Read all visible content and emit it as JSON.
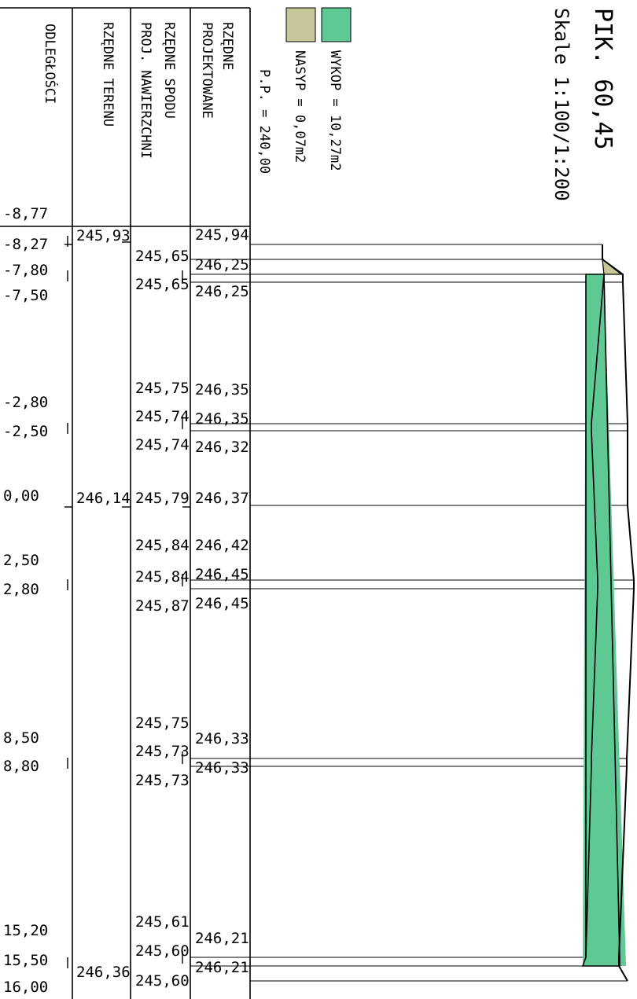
{
  "title": "PIK. 60,45",
  "scale": "Skale 1:100/1:200",
  "legend": {
    "wykop": "WYKOP = 10,27m2",
    "nasyp": "NASYP = 0,07m2",
    "pp": "P.P. = 240,00",
    "wykop_color": "#5fc994",
    "nasyp_color": "#c8c79a"
  },
  "columns": {
    "odleglosci": "ODLEGŁOŚCI",
    "rzedne_terenu": "RZĘDNE TERENU",
    "spodu_line1": "RZĘDNE SPODU",
    "spodu_line2": "PROJ. NAWIERZCHNI",
    "proj_line1": "RZĘDNE",
    "proj_line2": "PROJEKTOWANE"
  },
  "header_offset": "-8,77",
  "rows": {
    "distances": [
      "-8,27",
      "-7,80",
      "-7,50",
      "-2,80",
      "-2,50",
      "0,00",
      "2,50",
      "2,80",
      "8,50",
      "8,80",
      "15,20",
      "15,50",
      "16,00"
    ],
    "terrain": [
      "245,93",
      "246,14",
      "246,36"
    ],
    "subgrade": [
      "245,65",
      "245,65",
      "245,75",
      "245,74",
      "245,74",
      "245,79",
      "245,84",
      "245,84",
      "245,87",
      "245,75",
      "245,73",
      "245,73",
      "245,61",
      "245,60",
      "245,60"
    ],
    "design": [
      "245,94",
      "246,25",
      "246,25",
      "246,35",
      "246,35",
      "246,32",
      "246,37",
      "246,42",
      "246,45",
      "246,45",
      "246,33",
      "246,33",
      "246,21",
      "246,21"
    ]
  }
}
